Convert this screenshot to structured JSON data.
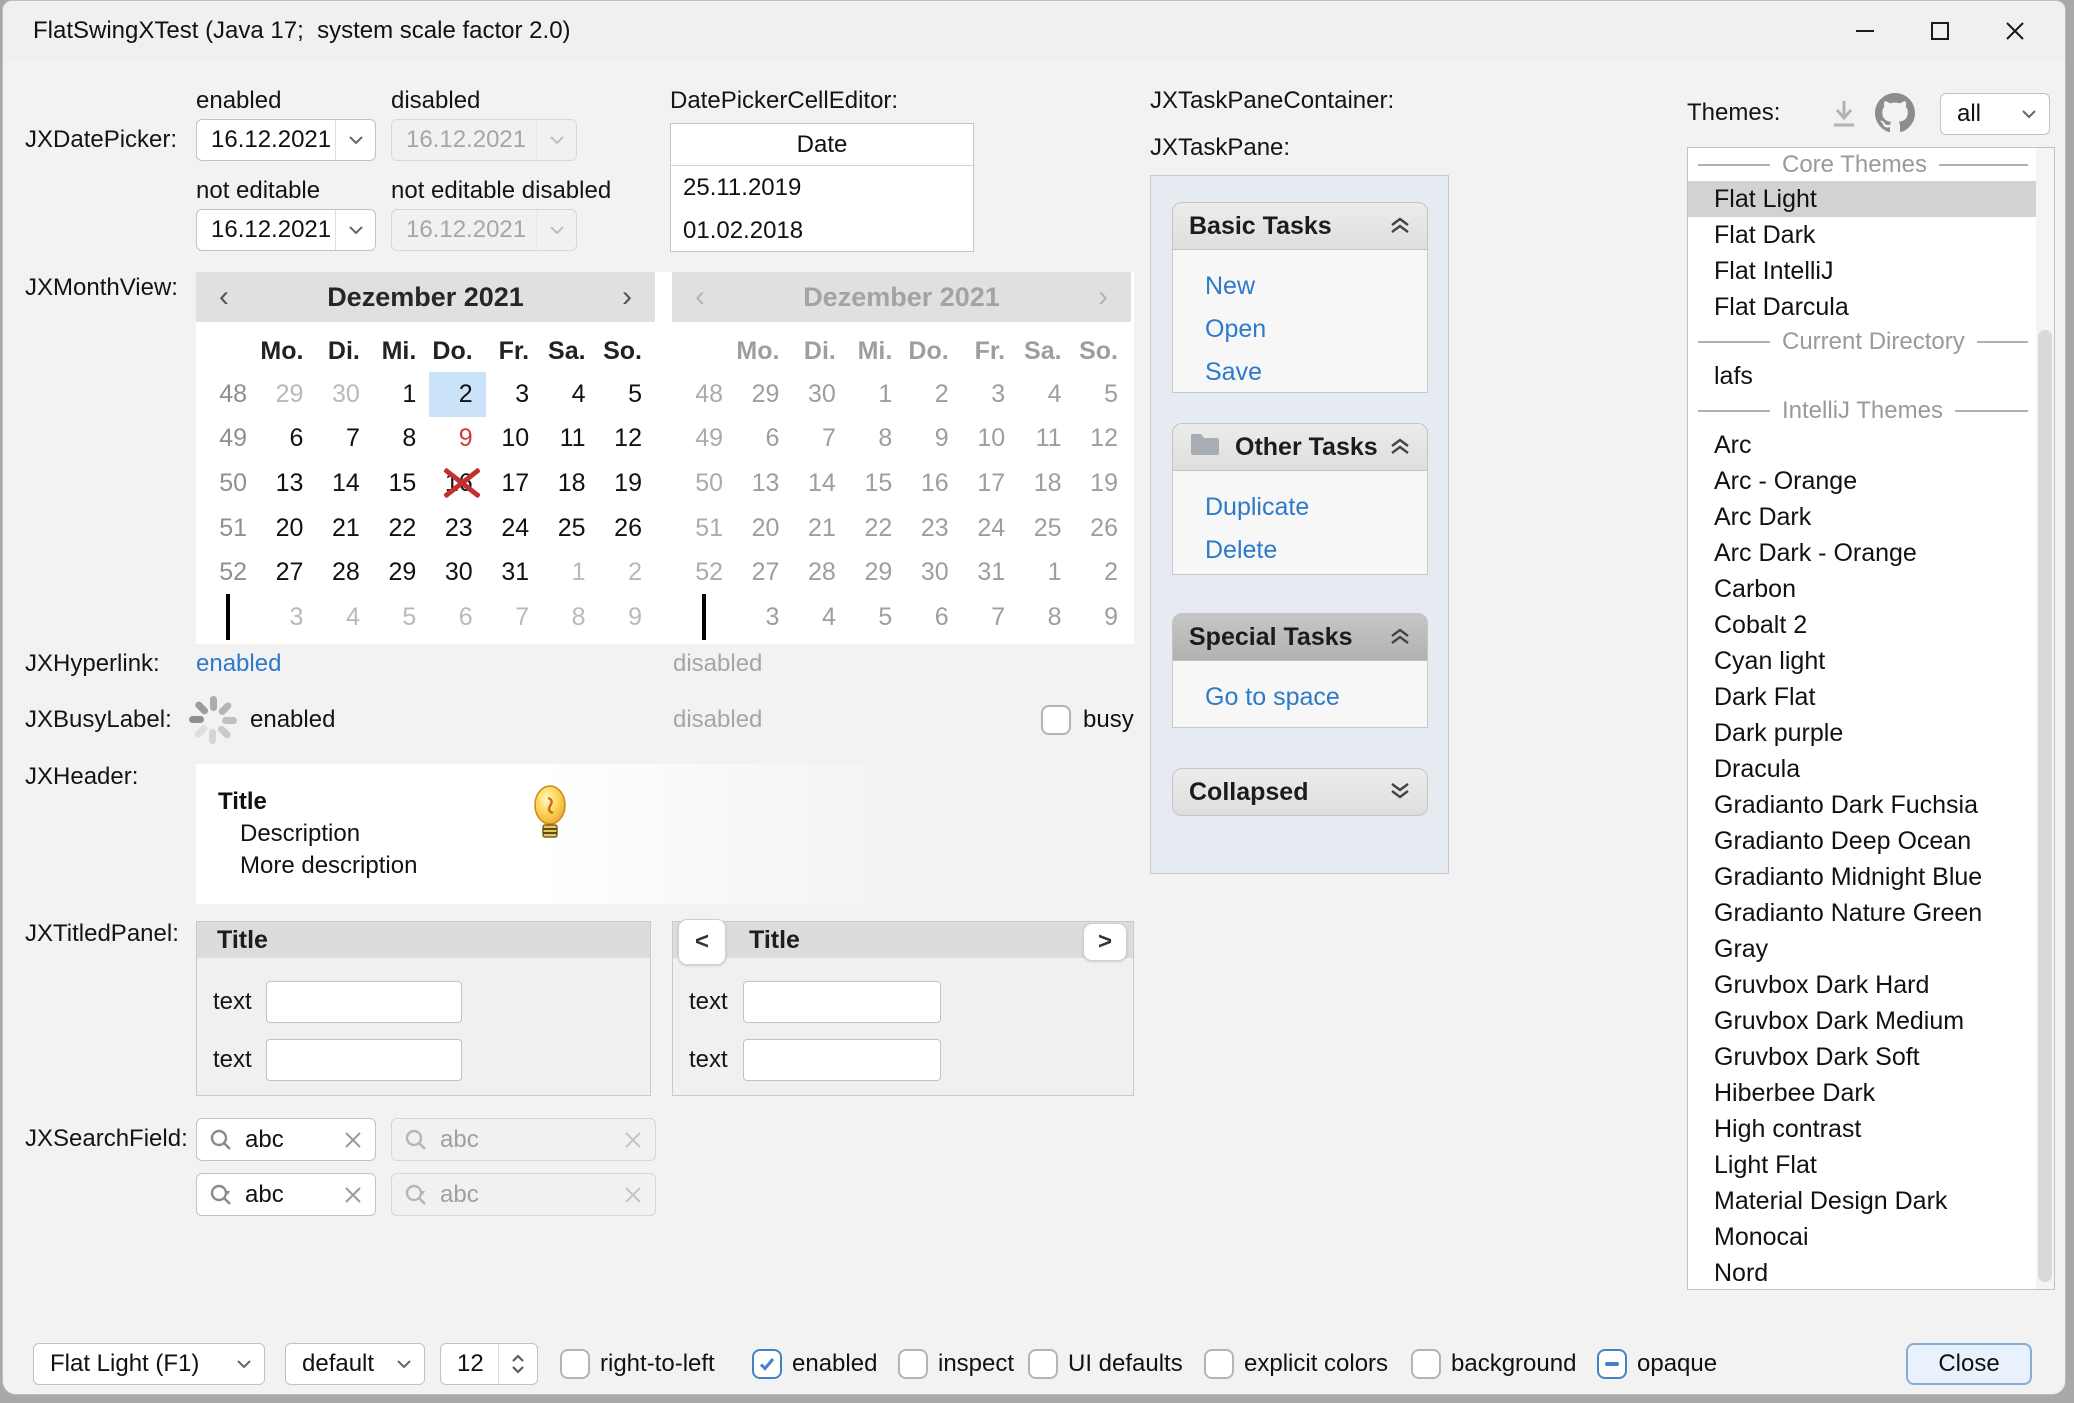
{
  "window": {
    "title": "FlatSwingXTest (Java 17;  system scale factor 2.0)",
    "controls": {
      "minimize": "minimize",
      "maximize": "maximize",
      "close": "close"
    }
  },
  "colors": {
    "window_bg": "#f2f2f2",
    "accent_blue": "#4283c4",
    "link_blue": "#2d7ac8",
    "selection_blue": "#cbe3f8",
    "today_red": "#d13b3b",
    "taskpane_bg": "#e6ebf1",
    "header_bar": "#e0e0e0",
    "disabled_text": "#a6a6a6"
  },
  "sections": {
    "datepicker": {
      "label": "JXDatePicker:",
      "fields": [
        {
          "state_label": "enabled",
          "value": "16.12.2021",
          "disabled": false
        },
        {
          "state_label": "disabled",
          "value": "16.12.2021",
          "disabled": true
        },
        {
          "state_label": "not editable",
          "value": "16.12.2021",
          "disabled": false
        },
        {
          "state_label": "not editable disabled",
          "value": "16.12.2021",
          "disabled": true
        }
      ]
    },
    "cell_editor": {
      "label": "DatePickerCellEditor:",
      "column_header": "Date",
      "rows": [
        "25.11.2019",
        "01.02.2018"
      ]
    },
    "monthview": {
      "label": "JXMonthView:",
      "title": "Dezember 2021",
      "nav_prev": "‹",
      "nav_next": "›",
      "day_headers": [
        "Mo.",
        "Di.",
        "Mi.",
        "Do.",
        "Fr.",
        "Sa.",
        "So."
      ],
      "weeks": [
        {
          "week": "48",
          "days": [
            {
              "d": "29",
              "muted": 1
            },
            {
              "d": "30",
              "muted": 1
            },
            {
              "d": "1"
            },
            {
              "d": "2",
              "selected": 1
            },
            {
              "d": "3"
            },
            {
              "d": "4"
            },
            {
              "d": "5"
            }
          ]
        },
        {
          "week": "49",
          "days": [
            {
              "d": "6"
            },
            {
              "d": "7"
            },
            {
              "d": "8"
            },
            {
              "d": "9",
              "today": 1
            },
            {
              "d": "10"
            },
            {
              "d": "11"
            },
            {
              "d": "12"
            }
          ]
        },
        {
          "week": "50",
          "days": [
            {
              "d": "13"
            },
            {
              "d": "14"
            },
            {
              "d": "15"
            },
            {
              "d": "16",
              "crossed": 1
            },
            {
              "d": "17"
            },
            {
              "d": "18"
            },
            {
              "d": "19"
            }
          ]
        },
        {
          "week": "51",
          "days": [
            {
              "d": "20"
            },
            {
              "d": "21"
            },
            {
              "d": "22"
            },
            {
              "d": "23"
            },
            {
              "d": "24"
            },
            {
              "d": "25"
            },
            {
              "d": "26"
            }
          ]
        },
        {
          "week": "52",
          "days": [
            {
              "d": "27"
            },
            {
              "d": "28"
            },
            {
              "d": "29"
            },
            {
              "d": "30"
            },
            {
              "d": "31"
            },
            {
              "d": "1",
              "muted": 1
            },
            {
              "d": "2",
              "muted": 1
            }
          ]
        },
        {
          "week": "",
          "bar": 1,
          "days": [
            {
              "d": "3",
              "muted": 1
            },
            {
              "d": "4",
              "muted": 1
            },
            {
              "d": "5",
              "muted": 1
            },
            {
              "d": "6",
              "muted": 1
            },
            {
              "d": "7",
              "muted": 1
            },
            {
              "d": "8",
              "muted": 1
            },
            {
              "d": "9",
              "muted": 1
            }
          ]
        }
      ]
    },
    "hyperlink": {
      "label": "JXHyperlink:",
      "enabled_text": "enabled",
      "disabled_text": "disabled"
    },
    "busylabel": {
      "label": "JXBusyLabel:",
      "enabled_text": "enabled",
      "disabled_text": "disabled",
      "busy_checkbox_label": "busy"
    },
    "header": {
      "label": "JXHeader:",
      "title": "Title",
      "description": "Description",
      "more": "More description"
    },
    "titledpanel": {
      "label": "JXTitledPanel:",
      "left": {
        "title": "Title",
        "row_labels": [
          "text",
          "text"
        ]
      },
      "right": {
        "title": "Title",
        "prev_button": "<",
        "next_button": ">",
        "row_labels": [
          "text",
          "text"
        ]
      }
    },
    "searchfield": {
      "label": "JXSearchField:",
      "value": "abc"
    },
    "taskpane": {
      "container_label": "JXTaskPaneContainer:",
      "pane_label": "JXTaskPane:",
      "panes": [
        {
          "title": "Basic Tasks",
          "icon": "",
          "chevron": "up",
          "dark": false,
          "links": [
            "New",
            "Open",
            "Save"
          ]
        },
        {
          "title": "Other Tasks",
          "icon": "folder",
          "chevron": "up",
          "dark": false,
          "links": [
            "Duplicate",
            "Delete"
          ]
        },
        {
          "title": "Special Tasks",
          "icon": "",
          "chevron": "up",
          "dark": true,
          "links": [
            "Go to space"
          ]
        },
        {
          "title": "Collapsed",
          "icon": "",
          "chevron": "down",
          "dark": false,
          "links": []
        }
      ]
    },
    "themes": {
      "label": "Themes:",
      "filter_value": "all",
      "list": [
        {
          "type": "sep",
          "label": "Core Themes"
        },
        {
          "type": "item",
          "label": "Flat Light",
          "selected": true
        },
        {
          "type": "item",
          "label": "Flat Dark"
        },
        {
          "type": "item",
          "label": "Flat IntelliJ"
        },
        {
          "type": "item",
          "label": "Flat Darcula"
        },
        {
          "type": "sep",
          "label": "Current Directory"
        },
        {
          "type": "item",
          "label": "lafs"
        },
        {
          "type": "sep",
          "label": "IntelliJ Themes"
        },
        {
          "type": "item",
          "label": "Arc"
        },
        {
          "type": "item",
          "label": "Arc - Orange"
        },
        {
          "type": "item",
          "label": "Arc Dark"
        },
        {
          "type": "item",
          "label": "Arc Dark - Orange"
        },
        {
          "type": "item",
          "label": "Carbon"
        },
        {
          "type": "item",
          "label": "Cobalt 2"
        },
        {
          "type": "item",
          "label": "Cyan light"
        },
        {
          "type": "item",
          "label": "Dark Flat"
        },
        {
          "type": "item",
          "label": "Dark purple"
        },
        {
          "type": "item",
          "label": "Dracula"
        },
        {
          "type": "item",
          "label": "Gradianto Dark Fuchsia"
        },
        {
          "type": "item",
          "label": "Gradianto Deep Ocean"
        },
        {
          "type": "item",
          "label": "Gradianto Midnight Blue"
        },
        {
          "type": "item",
          "label": "Gradianto Nature Green"
        },
        {
          "type": "item",
          "label": "Gray"
        },
        {
          "type": "item",
          "label": "Gruvbox Dark Hard"
        },
        {
          "type": "item",
          "label": "Gruvbox Dark Medium"
        },
        {
          "type": "item",
          "label": "Gruvbox Dark Soft"
        },
        {
          "type": "item",
          "label": "Hiberbee Dark"
        },
        {
          "type": "item",
          "label": "High contrast"
        },
        {
          "type": "item",
          "label": "Light Flat"
        },
        {
          "type": "item",
          "label": "Material Design Dark"
        },
        {
          "type": "item",
          "label": "Monocai"
        },
        {
          "type": "item",
          "label": "Nord"
        }
      ]
    },
    "toolbar": {
      "theme_combo_value": "Flat Light (F1)",
      "font_combo_value": "default",
      "font_size_value": "12",
      "checkboxes": [
        {
          "label": "right-to-left",
          "state": "unchecked"
        },
        {
          "label": "enabled",
          "state": "checked"
        },
        {
          "label": "inspect",
          "state": "unchecked"
        },
        {
          "label": "UI defaults",
          "state": "unchecked"
        },
        {
          "label": "explicit colors",
          "state": "unchecked"
        },
        {
          "label": "background",
          "state": "unchecked"
        },
        {
          "label": "opaque",
          "state": "indeterminate"
        }
      ],
      "close_label": "Close"
    }
  }
}
